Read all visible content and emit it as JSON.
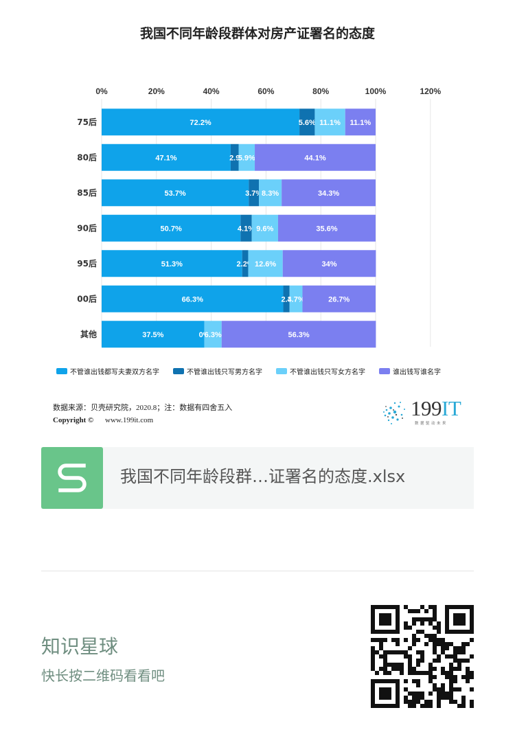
{
  "chart_data": {
    "type": "bar",
    "orientation": "horizontal",
    "stacked": true,
    "title": "我国不同年龄段群体对房产证署名的态度",
    "categories": [
      "75后",
      "80后",
      "85后",
      "90后",
      "95后",
      "00后",
      "其他"
    ],
    "series": [
      {
        "name": "不管谁出钱都写夫妻双方名字",
        "color": "#0fa3ea",
        "values": [
          72.2,
          47.1,
          53.7,
          50.7,
          51.3,
          66.3,
          37.5
        ],
        "labels": [
          "72.2%",
          "47.1%",
          "53.7%",
          "50.7%",
          "51.3%",
          "66.3%",
          "37.5%"
        ]
      },
      {
        "name": "不管谁出钱只写男方名字",
        "color": "#0f72b0",
        "values": [
          5.6,
          2.9,
          3.7,
          4.1,
          2.2,
          2.3,
          0
        ],
        "labels": [
          "5.6%",
          "2.9",
          "3.7%",
          "4.1%",
          "2.2%",
          "2.3",
          "0%"
        ]
      },
      {
        "name": "不管谁出钱只写女方名字",
        "color": "#6bd0fa",
        "values": [
          11.1,
          5.9,
          8.3,
          9.6,
          12.6,
          4.7,
          6.3
        ],
        "labels": [
          "11.1%",
          "5.9%",
          "8.3%",
          "9.6%",
          "12.6%",
          "4.7%",
          "6.3%"
        ]
      },
      {
        "name": "谁出钱写谁名字",
        "color": "#7b7ff0",
        "values": [
          11.1,
          44.1,
          34.3,
          35.6,
          34,
          26.7,
          56.3
        ],
        "labels": [
          "11.1%",
          "44.1%",
          "34.3%",
          "35.6%",
          "34%",
          "26.7%",
          "56.3%"
        ]
      }
    ],
    "xlim": [
      0,
      120
    ],
    "xticks": [
      "0%",
      "20%",
      "40%",
      "60%",
      "80%",
      "100%",
      "120%"
    ],
    "grid": true,
    "legend_position": "bottom"
  },
  "footer": {
    "source": "数据来源：贝壳研究院，2020.8；注：数据有四舍五入",
    "copyright_label": "Copyright ©",
    "url": "www.199it.com",
    "logo_num": "199",
    "logo_it": "IT",
    "logo_sub": "数据驱动未来"
  },
  "file_card": {
    "icon_letter": "S",
    "file_name": "我国不同年龄段群…证署名的态度.xlsx"
  },
  "promo": {
    "title": "知识星球",
    "subtitle": "快长按二维码看看吧"
  }
}
